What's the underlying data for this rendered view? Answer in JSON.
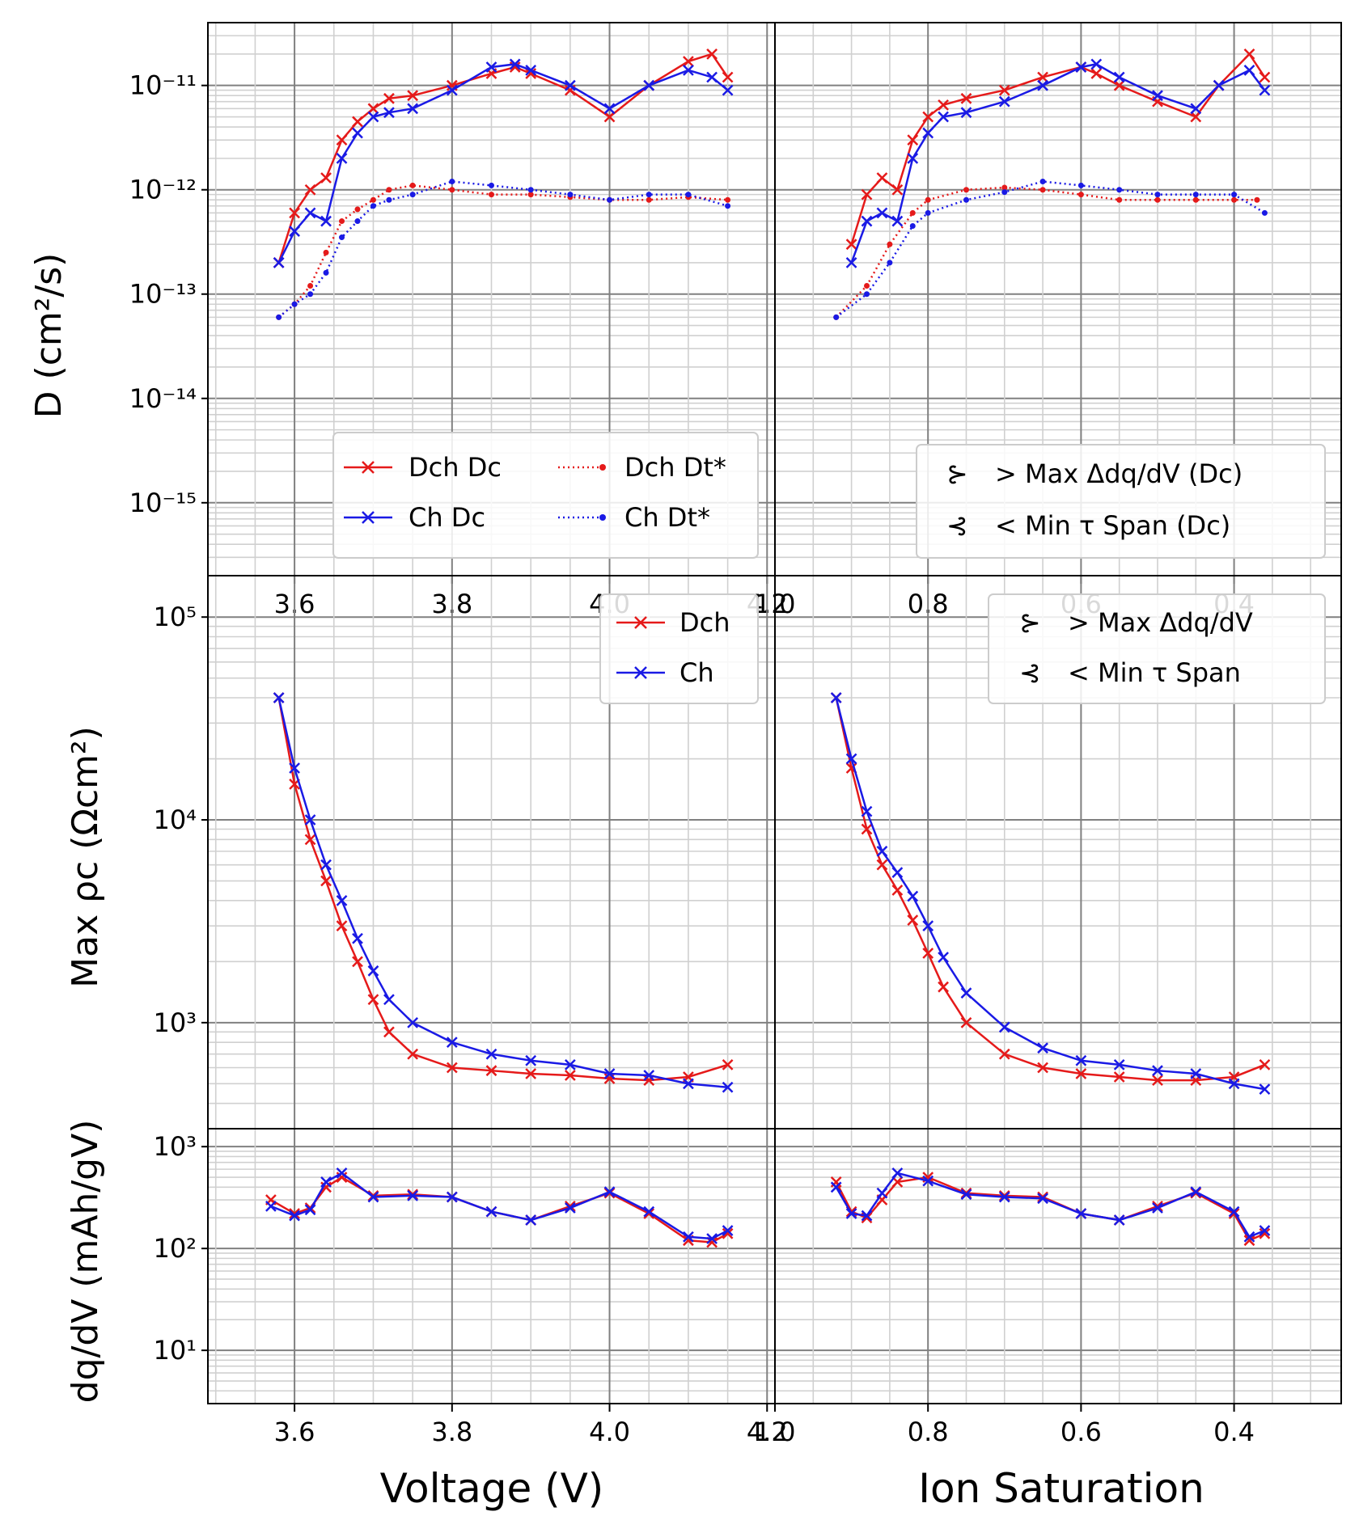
{
  "figure": {
    "xlabel_left": "Voltage (V)",
    "xlabel_right": "Ion Saturation",
    "ylabel_top": "D (cm²/s)",
    "ylabel_mid": "Max ρc (Ωcm²)",
    "ylabel_bot": "dq/dV (mAh/gV)"
  },
  "legends": {
    "top_left": [
      {
        "label": "Dch",
        "sub": "D",
        "subscript": "c",
        "color": "#e51a1a",
        "style": "solid-x"
      },
      {
        "label": "Ch",
        "sub": "D",
        "subscript": "c",
        "color": "#1a1ae5",
        "style": "solid-x"
      },
      {
        "label": "Dch",
        "sub": "D",
        "subscript": "t",
        "superscript": "*",
        "color": "#e51a1a",
        "style": "dotted-dot"
      },
      {
        "label": "Ch",
        "sub": "D",
        "subscript": "t",
        "superscript": "*",
        "color": "#1a1ae5",
        "style": "dotted-dot"
      }
    ],
    "top_right": [
      {
        "label": "> Max Δdq/dV (Dc)"
      },
      {
        "label": "< Min τ Span (Dc)"
      }
    ],
    "mid_left": [
      {
        "label": "Dch",
        "color": "#e51a1a"
      },
      {
        "label": "Ch",
        "color": "#1a1ae5"
      }
    ],
    "mid_right": [
      {
        "label": "> Max Δdq/dV"
      },
      {
        "label": "< Min τ Span"
      }
    ]
  },
  "chart_data": [
    {
      "type": "line",
      "panel": "top-left",
      "ylabel": "D (cm²/s)",
      "yscale": "log",
      "ylim": [
        2e-16,
        4e-11
      ],
      "xlim": [
        3.49,
        4.21
      ],
      "xticks": [
        3.6,
        3.8,
        4.0,
        4.2
      ],
      "yticks": [
        "10^-11",
        "10^-12",
        "10^-13",
        "10^-14",
        "10^-15"
      ],
      "grid": true,
      "legend": "lower-right",
      "series": [
        {
          "name": "Dch Dc",
          "color": "#e51a1a",
          "x": [
            3.58,
            3.6,
            3.62,
            3.64,
            3.66,
            3.68,
            3.7,
            3.72,
            3.75,
            3.8,
            3.85,
            3.88,
            3.9,
            3.95,
            4.0,
            4.05,
            4.1,
            4.13,
            4.15
          ],
          "y": [
            2e-13,
            6e-13,
            1e-12,
            1.3e-12,
            3e-12,
            4.5e-12,
            6e-12,
            7.5e-12,
            8e-12,
            1e-11,
            1.3e-11,
            1.5e-11,
            1.3e-11,
            9e-12,
            5e-12,
            1e-11,
            1.7e-11,
            2e-11,
            1.2e-11
          ]
        },
        {
          "name": "Ch Dc",
          "color": "#1a1ae5",
          "x": [
            3.58,
            3.6,
            3.62,
            3.64,
            3.66,
            3.68,
            3.7,
            3.72,
            3.75,
            3.8,
            3.85,
            3.88,
            3.9,
            3.95,
            4.0,
            4.05,
            4.1,
            4.13,
            4.15
          ],
          "y": [
            2e-13,
            4e-13,
            6e-13,
            5e-13,
            2e-12,
            3.5e-12,
            5e-12,
            5.5e-12,
            6e-12,
            9e-12,
            1.5e-11,
            1.6e-11,
            1.4e-11,
            1e-11,
            6e-12,
            1e-11,
            1.4e-11,
            1.2e-11,
            9e-12
          ]
        },
        {
          "name": "Dch D*t",
          "color": "#e51a1a",
          "x": [
            3.58,
            3.6,
            3.62,
            3.64,
            3.66,
            3.68,
            3.7,
            3.72,
            3.75,
            3.8,
            3.85,
            3.9,
            3.95,
            4.0,
            4.05,
            4.1,
            4.15
          ],
          "y": [
            6e-14,
            8e-14,
            1.2e-13,
            2.5e-13,
            5e-13,
            6.5e-13,
            8e-13,
            1e-12,
            1.1e-12,
            1e-12,
            9e-13,
            9e-13,
            8.5e-13,
            8e-13,
            8e-13,
            8.5e-13,
            8e-13
          ]
        },
        {
          "name": "Ch D*t",
          "color": "#1a1ae5",
          "x": [
            3.58,
            3.6,
            3.62,
            3.64,
            3.66,
            3.68,
            3.7,
            3.72,
            3.75,
            3.8,
            3.85,
            3.9,
            3.95,
            4.0,
            4.05,
            4.1,
            4.15
          ],
          "y": [
            6e-14,
            8e-14,
            1e-13,
            1.6e-13,
            3.5e-13,
            5e-13,
            7e-13,
            8e-13,
            9e-13,
            1.2e-12,
            1.1e-12,
            1e-12,
            9e-13,
            8e-13,
            9e-13,
            9e-13,
            7e-13
          ]
        }
      ]
    },
    {
      "type": "line",
      "panel": "top-right",
      "ylabel": "",
      "yscale": "log",
      "ylim": [
        2e-16,
        4e-11
      ],
      "xlim": [
        1.0,
        0.26
      ],
      "xticks": [
        1.0,
        0.8,
        0.6,
        0.4
      ],
      "grid": true,
      "legend": "lower-right",
      "series": [
        {
          "name": "Dch Dc",
          "color": "#e51a1a",
          "x": [
            0.9,
            0.88,
            0.86,
            0.84,
            0.82,
            0.8,
            0.78,
            0.75,
            0.7,
            0.65,
            0.6,
            0.58,
            0.55,
            0.5,
            0.45,
            0.42,
            0.38,
            0.36
          ],
          "y": [
            3e-13,
            9e-13,
            1.3e-12,
            1e-12,
            3e-12,
            5e-12,
            6.5e-12,
            7.5e-12,
            9e-12,
            1.2e-11,
            1.5e-11,
            1.3e-11,
            1e-11,
            7e-12,
            5e-12,
            1e-11,
            2e-11,
            1.2e-11
          ]
        },
        {
          "name": "Ch Dc",
          "color": "#1a1ae5",
          "x": [
            0.9,
            0.88,
            0.86,
            0.84,
            0.82,
            0.8,
            0.78,
            0.75,
            0.7,
            0.65,
            0.6,
            0.58,
            0.55,
            0.5,
            0.45,
            0.42,
            0.38,
            0.36
          ],
          "y": [
            2e-13,
            5e-13,
            6e-13,
            5e-13,
            2e-12,
            3.5e-12,
            5e-12,
            5.5e-12,
            7e-12,
            1e-11,
            1.5e-11,
            1.6e-11,
            1.2e-11,
            8e-12,
            6e-12,
            1e-11,
            1.4e-11,
            9e-12
          ]
        },
        {
          "name": "Dch D*t",
          "color": "#e51a1a",
          "x": [
            0.92,
            0.88,
            0.85,
            0.82,
            0.8,
            0.75,
            0.7,
            0.65,
            0.6,
            0.55,
            0.5,
            0.45,
            0.4,
            0.37
          ],
          "y": [
            6e-14,
            1.2e-13,
            3e-13,
            6e-13,
            8e-13,
            1e-12,
            1.05e-12,
            1e-12,
            9e-13,
            8e-13,
            8e-13,
            8e-13,
            8e-13,
            8e-13
          ]
        },
        {
          "name": "Ch D*t",
          "color": "#1a1ae5",
          "x": [
            0.92,
            0.88,
            0.85,
            0.82,
            0.8,
            0.75,
            0.7,
            0.65,
            0.6,
            0.55,
            0.5,
            0.45,
            0.4,
            0.36
          ],
          "y": [
            6e-14,
            1e-13,
            2e-13,
            4.5e-13,
            6e-13,
            8e-13,
            9.5e-13,
            1.2e-12,
            1.1e-12,
            1e-12,
            9e-13,
            9e-13,
            9e-13,
            6e-13
          ]
        }
      ]
    },
    {
      "type": "line",
      "panel": "mid-left",
      "ylabel": "Max ρc (Ωcm²)",
      "yscale": "log",
      "ylim": [
        300,
        160000
      ],
      "xlim": [
        3.49,
        4.21
      ],
      "yticks": [
        "10^5",
        "10^4",
        "10^3"
      ],
      "grid": true,
      "legend": "top-right",
      "series": [
        {
          "name": "Dch",
          "color": "#e51a1a",
          "x": [
            3.58,
            3.6,
            3.62,
            3.64,
            3.66,
            3.68,
            3.7,
            3.72,
            3.75,
            3.8,
            3.85,
            3.9,
            3.95,
            4.0,
            4.05,
            4.1,
            4.15
          ],
          "y": [
            40000,
            15000,
            8000,
            5000,
            3000,
            2000,
            1300,
            900,
            700,
            600,
            580,
            560,
            550,
            530,
            520,
            540,
            620
          ]
        },
        {
          "name": "Ch",
          "color": "#1a1ae5",
          "x": [
            3.58,
            3.6,
            3.62,
            3.64,
            3.66,
            3.68,
            3.7,
            3.72,
            3.75,
            3.8,
            3.85,
            3.9,
            3.95,
            4.0,
            4.05,
            4.1,
            4.15
          ],
          "y": [
            40000,
            18000,
            10000,
            6000,
            4000,
            2600,
            1800,
            1300,
            1000,
            800,
            700,
            650,
            620,
            560,
            550,
            500,
            480
          ]
        }
      ]
    },
    {
      "type": "line",
      "panel": "mid-right",
      "ylabel": "",
      "yscale": "log",
      "ylim": [
        300,
        160000
      ],
      "xlim": [
        1.0,
        0.26
      ],
      "grid": true,
      "legend": "top-right",
      "series": [
        {
          "name": "Dch",
          "color": "#e51a1a",
          "x": [
            0.92,
            0.9,
            0.88,
            0.86,
            0.84,
            0.82,
            0.8,
            0.78,
            0.75,
            0.7,
            0.65,
            0.6,
            0.55,
            0.5,
            0.45,
            0.4,
            0.36
          ],
          "y": [
            40000,
            18000,
            9000,
            6000,
            4500,
            3200,
            2200,
            1500,
            1000,
            700,
            600,
            560,
            540,
            520,
            520,
            540,
            620
          ]
        },
        {
          "name": "Ch",
          "color": "#1a1ae5",
          "x": [
            0.92,
            0.9,
            0.88,
            0.86,
            0.84,
            0.82,
            0.8,
            0.78,
            0.75,
            0.7,
            0.65,
            0.6,
            0.55,
            0.5,
            0.45,
            0.4,
            0.36
          ],
          "y": [
            40000,
            20000,
            11000,
            7000,
            5500,
            4200,
            3000,
            2100,
            1400,
            950,
            750,
            650,
            620,
            580,
            560,
            500,
            470
          ]
        }
      ]
    },
    {
      "type": "line",
      "panel": "bottom-left",
      "ylabel": "dq/dV (mAh/gV)",
      "yscale": "log",
      "ylim": [
        3,
        1500
      ],
      "xlim": [
        3.49,
        4.21
      ],
      "xticks": [
        3.6,
        3.8,
        4.0,
        4.2
      ],
      "yticks": [
        "10^3",
        "10^2",
        "10^1"
      ],
      "grid": true,
      "series": [
        {
          "name": "Dch",
          "color": "#e51a1a",
          "x": [
            3.57,
            3.6,
            3.62,
            3.64,
            3.66,
            3.7,
            3.75,
            3.8,
            3.85,
            3.9,
            3.95,
            4.0,
            4.05,
            4.1,
            4.13,
            4.15
          ],
          "y": [
            300,
            220,
            250,
            400,
            500,
            330,
            340,
            320,
            230,
            190,
            260,
            350,
            220,
            120,
            115,
            140
          ]
        },
        {
          "name": "Ch",
          "color": "#1a1ae5",
          "x": [
            3.57,
            3.6,
            3.62,
            3.64,
            3.66,
            3.7,
            3.75,
            3.8,
            3.85,
            3.9,
            3.95,
            4.0,
            4.05,
            4.1,
            4.13,
            4.15
          ],
          "y": [
            260,
            210,
            240,
            450,
            550,
            320,
            330,
            320,
            230,
            190,
            250,
            360,
            230,
            130,
            125,
            150
          ]
        }
      ]
    },
    {
      "type": "line",
      "panel": "bottom-right",
      "ylabel": "",
      "yscale": "log",
      "ylim": [
        3,
        1500
      ],
      "xlim": [
        1.0,
        0.26
      ],
      "xticks": [
        1.0,
        0.8,
        0.6,
        0.4
      ],
      "grid": true,
      "series": [
        {
          "name": "Dch",
          "color": "#e51a1a",
          "x": [
            0.92,
            0.9,
            0.88,
            0.86,
            0.84,
            0.8,
            0.75,
            0.7,
            0.65,
            0.6,
            0.55,
            0.5,
            0.45,
            0.4,
            0.38,
            0.36
          ],
          "y": [
            450,
            230,
            200,
            300,
            450,
            500,
            350,
            330,
            320,
            220,
            190,
            260,
            350,
            220,
            120,
            140
          ]
        },
        {
          "name": "Ch",
          "color": "#1a1ae5",
          "x": [
            0.92,
            0.9,
            0.88,
            0.86,
            0.84,
            0.8,
            0.75,
            0.7,
            0.65,
            0.6,
            0.55,
            0.5,
            0.45,
            0.4,
            0.38,
            0.36
          ],
          "y": [
            400,
            220,
            210,
            350,
            550,
            460,
            340,
            320,
            310,
            220,
            190,
            250,
            360,
            230,
            130,
            150
          ]
        }
      ]
    }
  ]
}
